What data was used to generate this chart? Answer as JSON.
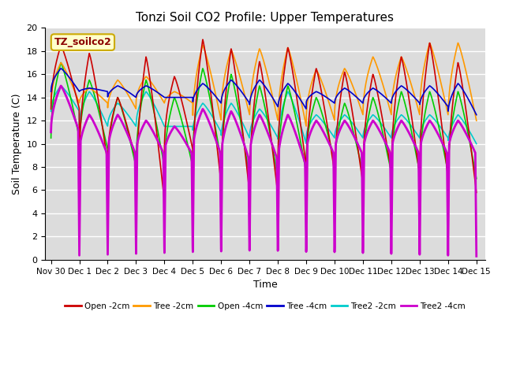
{
  "title": "Tonzi Soil CO2 Profile: Upper Temperatures",
  "xlabel": "Time",
  "ylabel": "Soil Temperature (C)",
  "ylim": [
    0,
    20
  ],
  "annotation": "TZ_soilco2",
  "bg_color": "#dcdcdc",
  "series": [
    {
      "label": "Open -2cm",
      "color": "#cc0000"
    },
    {
      "label": "Tree -2cm",
      "color": "#ff9900"
    },
    {
      "label": "Open -4cm",
      "color": "#00cc00"
    },
    {
      "label": "Tree -4cm",
      "color": "#0000cc"
    },
    {
      "label": "Tree2 -2cm",
      "color": "#00cccc"
    },
    {
      "label": "Tree2 -4cm",
      "color": "#cc00cc"
    }
  ],
  "xtick_labels": [
    "Nov 30",
    "Dec 1",
    "Dec 2",
    "Dec 3",
    "Dec 4",
    "Dec 5",
    "Dec 6",
    "Dec 7",
    "Dec 8",
    "Dec 9",
    "Dec 10",
    "Dec 11",
    "Dec 12",
    "Dec 13",
    "Dec 14",
    "Dec 15"
  ],
  "xtick_positions": [
    0,
    1,
    2,
    3,
    4,
    5,
    6,
    7,
    8,
    9,
    10,
    11,
    12,
    13,
    14,
    15
  ],
  "peak_times": [
    0.35,
    1.35,
    2.35,
    3.35,
    4.35,
    5.35,
    6.35,
    7.35,
    8.35,
    9.35,
    10.35,
    11.35,
    12.35,
    13.35,
    14.35
  ],
  "open2_peaks": [
    18.5,
    17.8,
    14.0,
    17.5,
    15.8,
    19.0,
    18.2,
    17.1,
    18.3,
    16.5,
    16.2,
    16.0,
    17.5,
    18.7,
    17.0
  ],
  "open2_mins": [
    13.0,
    8.3,
    8.5,
    5.0,
    9.5,
    6.5,
    5.8,
    5.6,
    8.0,
    7.5,
    6.5,
    7.5,
    7.2,
    7.0,
    5.8
  ],
  "tree2_peaks": [
    17.0,
    14.8,
    15.5,
    15.8,
    14.5,
    18.5,
    18.1,
    18.2,
    18.3,
    16.4,
    16.5,
    17.5,
    17.5,
    18.7,
    18.7
  ],
  "tree2_mins": [
    13.5,
    13.5,
    13.0,
    13.5,
    13.5,
    12.0,
    12.5,
    12.0,
    11.5,
    12.0,
    12.5,
    12.5,
    12.5,
    12.5,
    12.0
  ],
  "open4_peaks": [
    17.0,
    15.5,
    14.0,
    15.5,
    14.0,
    16.5,
    16.0,
    15.0,
    15.0,
    14.0,
    13.5,
    14.0,
    14.5,
    14.5,
    14.5
  ],
  "open4_mins": [
    10.5,
    9.5,
    8.0,
    8.0,
    8.0,
    8.5,
    7.0,
    7.0,
    7.5,
    8.5,
    7.5,
    7.5,
    7.5,
    7.5,
    7.0
  ],
  "tree4_peaks": [
    16.5,
    14.8,
    15.0,
    15.0,
    14.0,
    15.2,
    15.5,
    15.5,
    15.2,
    14.5,
    14.8,
    14.8,
    15.0,
    15.0,
    15.2
  ],
  "tree4_mins": [
    14.5,
    14.5,
    14.0,
    14.0,
    14.0,
    13.5,
    13.5,
    13.2,
    13.0,
    13.5,
    13.5,
    13.5,
    13.5,
    13.2,
    12.5
  ],
  "t2_2_peaks": [
    15.0,
    14.5,
    13.5,
    14.5,
    11.5,
    13.5,
    13.5,
    13.0,
    14.5,
    12.5,
    12.5,
    12.5,
    12.5,
    12.5,
    12.5
  ],
  "t2_2_mins": [
    12.8,
    11.5,
    11.5,
    11.5,
    11.5,
    11.0,
    10.5,
    10.5,
    10.0,
    10.5,
    10.5,
    10.5,
    10.5,
    10.5,
    10.0
  ],
  "t2_4_peaks": [
    15.0,
    12.5,
    12.5,
    12.0,
    11.5,
    13.0,
    12.8,
    12.5,
    12.5,
    12.0,
    12.0,
    12.0,
    12.0,
    12.0,
    12.0
  ],
  "t2_4_mins": [
    11.0,
    9.0,
    9.0,
    9.0,
    9.0,
    9.0,
    8.5,
    8.5,
    8.0,
    9.0,
    9.0,
    9.0,
    9.0,
    9.0,
    9.0
  ],
  "magenta_drop_days": [
    0,
    1,
    2,
    3,
    4,
    5,
    6,
    7,
    8,
    9,
    10,
    11,
    12,
    13,
    14
  ]
}
